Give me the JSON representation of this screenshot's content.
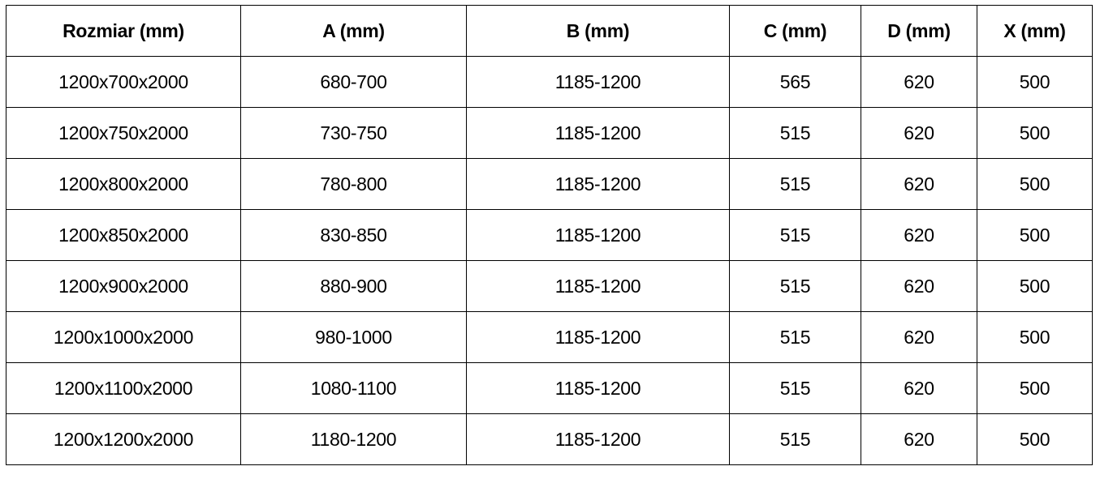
{
  "table": {
    "headers": [
      "Rozmiar (mm)",
      "A (mm)",
      "B (mm)",
      "C (mm)",
      "D (mm)",
      "X (mm)"
    ],
    "rows": [
      [
        "1200x700x2000",
        "680-700",
        "1185-1200",
        "565",
        "620",
        "500"
      ],
      [
        "1200x750x2000",
        "730-750",
        "1185-1200",
        "515",
        "620",
        "500"
      ],
      [
        "1200x800x2000",
        "780-800",
        "1185-1200",
        "515",
        "620",
        "500"
      ],
      [
        "1200x850x2000",
        "830-850",
        "1185-1200",
        "515",
        "620",
        "500"
      ],
      [
        "1200x900x2000",
        "880-900",
        "1185-1200",
        "515",
        "620",
        "500"
      ],
      [
        "1200x1000x2000",
        "980-1000",
        "1185-1200",
        "515",
        "620",
        "500"
      ],
      [
        "1200x1100x2000",
        "1080-1100",
        "1185-1200",
        "515",
        "620",
        "500"
      ],
      [
        "1200x1200x2000",
        "1180-1200",
        "1185-1200",
        "515",
        "620",
        "500"
      ]
    ]
  }
}
